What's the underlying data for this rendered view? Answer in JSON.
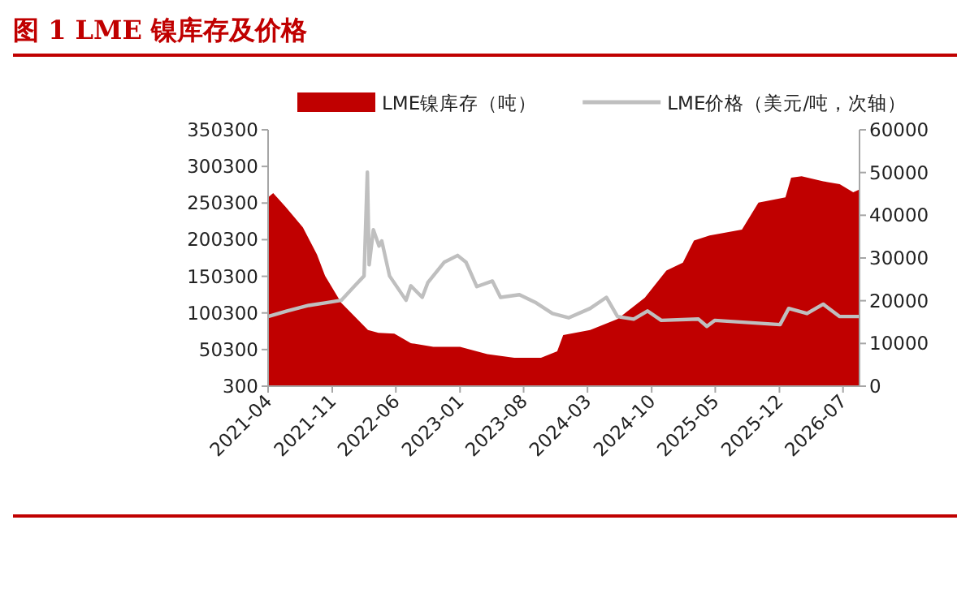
{
  "chart_data": {
    "type": "area",
    "title": "图 1 LME 镍库存及价格",
    "legend": "top",
    "grid": false,
    "xlim": [
      "2021-04-01",
      "2026-08-25"
    ],
    "xticks": [
      "2021-04",
      "2021-11",
      "2022-06",
      "2023-01",
      "2023-08",
      "2024-03",
      "2024-10",
      "2025-05",
      "2025-12",
      "2026-07"
    ],
    "ylim": [
      300,
      350300
    ],
    "yticks": [
      300,
      50300,
      100300,
      150300,
      200300,
      250300,
      300300,
      350300
    ],
    "y2lim": [
      0,
      60000
    ],
    "y2ticks": [
      0,
      10000,
      20000,
      30000,
      40000,
      50000,
      60000
    ],
    "series": [
      {
        "name": "LME镍库存（吨）",
        "color": "#c00000",
        "x": [
          "2021-04-01",
          "2021-04-18",
          "2021-06-03",
          "2021-07-26",
          "2021-09-11",
          "2021-10-08",
          "2021-12-01",
          "2022-02-28",
          "2022-04-04",
          "2022-05-27",
          "2022-07-21",
          "2022-10-04",
          "2023-01-01",
          "2023-04-02",
          "2023-07-01",
          "2023-09-28",
          "2023-11-21",
          "2023-12-11",
          "2024-03-10",
          "2024-06-09",
          "2024-09-08",
          "2024-11-19",
          "2025-01-13",
          "2025-02-19",
          "2025-04-12",
          "2025-07-29",
          "2025-09-22",
          "2025-12-21",
          "2026-01-09",
          "2026-02-13",
          "2026-04-26",
          "2026-06-20",
          "2026-08-04",
          "2026-08-25"
        ],
        "values": [
          258000,
          264000,
          243000,
          217000,
          180000,
          151000,
          114000,
          77000,
          73000,
          72000,
          59000,
          54000,
          54000,
          44000,
          39000,
          39000,
          48000,
          70000,
          77000,
          92000,
          121000,
          158000,
          169000,
          199000,
          206000,
          214000,
          251000,
          258000,
          285000,
          287000,
          280000,
          276000,
          265000,
          269000
        ]
      },
      {
        "name": "LME价格（美元/吨，次轴）",
        "type": "line",
        "axis": "y2",
        "color": "#bfbfbf",
        "x": [
          "2021-04-01",
          "2021-06-03",
          "2021-08-14",
          "2021-10-08",
          "2021-12-01",
          "2022-01-15",
          "2022-02-15",
          "2022-02-26",
          "2022-03-04",
          "2022-03-18",
          "2022-04-06",
          "2022-04-15",
          "2022-05-11",
          "2022-07-05",
          "2022-07-21",
          "2022-08-28",
          "2022-09-16",
          "2022-11-09",
          "2022-12-24",
          "2023-01-21",
          "2023-02-26",
          "2023-04-19",
          "2023-05-16",
          "2023-07-18",
          "2023-09-12",
          "2023-11-05",
          "2023-12-29",
          "2024-03-10",
          "2024-05-03",
          "2024-06-09",
          "2024-08-02",
          "2024-09-17",
          "2024-11-02",
          "2025-03-06",
          "2025-04-03",
          "2025-04-29",
          "2025-12-03",
          "2026-01-01",
          "2026-03-03",
          "2026-04-26",
          "2026-06-20",
          "2026-08-25"
        ],
        "values": [
          16300,
          17600,
          18900,
          19500,
          20100,
          23500,
          25800,
          50100,
          28400,
          36600,
          32800,
          34000,
          25800,
          20100,
          23500,
          20800,
          24300,
          29000,
          30600,
          29000,
          23300,
          24600,
          20800,
          21400,
          19500,
          17000,
          16000,
          18200,
          20800,
          16300,
          15700,
          17600,
          15400,
          15700,
          14000,
          15400,
          14400,
          18200,
          17000,
          19200,
          16300,
          16300
        ]
      }
    ]
  }
}
